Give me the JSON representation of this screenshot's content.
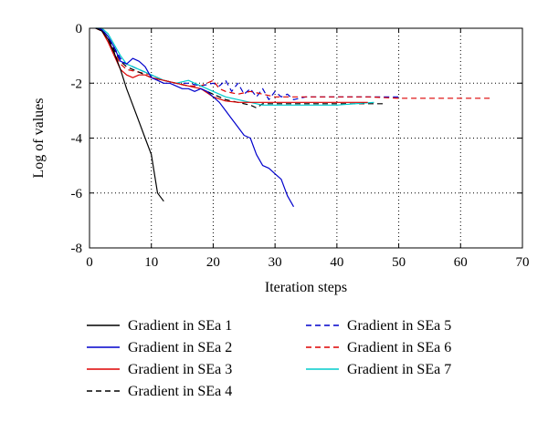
{
  "chart_data": {
    "type": "line",
    "xlabel": "Iteration steps",
    "ylabel": "Log of values",
    "xlim": [
      0,
      70
    ],
    "ylim": [
      -8,
      0
    ],
    "x_ticks": [
      0,
      10,
      20,
      30,
      40,
      50,
      60,
      70
    ],
    "y_ticks": [
      0,
      -2,
      -4,
      -6,
      -8
    ],
    "grid": "dotted",
    "legend_position": "below plot, two columns",
    "series": [
      {
        "name": "Gradient in SEa 1",
        "color": "#000000",
        "dash": "solid",
        "x": [
          1,
          2,
          3,
          4,
          5,
          6,
          7,
          8,
          9,
          10,
          11,
          12
        ],
        "y": [
          0,
          -0.1,
          -0.4,
          -0.9,
          -1.5,
          -2.2,
          -2.8,
          -3.4,
          -4.0,
          -4.6,
          -6.0,
          -6.3
        ]
      },
      {
        "name": "Gradient in SEa 2",
        "color": "#0000cc",
        "dash": "solid",
        "x": [
          1,
          2,
          3,
          4,
          5,
          6,
          7,
          8,
          9,
          10,
          11,
          12,
          13,
          14,
          15,
          16,
          17,
          18,
          19,
          20,
          21,
          22,
          23,
          24,
          25,
          26,
          27,
          28,
          29,
          30,
          31,
          32,
          33
        ],
        "y": [
          0,
          -0.05,
          -0.3,
          -0.7,
          -1.2,
          -1.3,
          -1.1,
          -1.2,
          -1.4,
          -1.8,
          -1.9,
          -2.0,
          -2.0,
          -2.1,
          -2.2,
          -2.2,
          -2.3,
          -2.2,
          -2.3,
          -2.5,
          -2.7,
          -3.0,
          -3.3,
          -3.6,
          -3.9,
          -4.0,
          -4.6,
          -5.0,
          -5.1,
          -5.3,
          -5.5,
          -6.1,
          -6.5
        ]
      },
      {
        "name": "Gradient in SEa 3",
        "color": "#dd0000",
        "dash": "solid",
        "x": [
          1,
          2,
          3,
          4,
          5,
          6,
          7,
          8,
          9,
          10,
          12,
          14,
          16,
          18,
          20,
          22,
          24,
          26,
          28,
          30,
          35,
          40,
          45
        ],
        "y": [
          0,
          -0.1,
          -0.5,
          -1.0,
          -1.5,
          -1.7,
          -1.8,
          -1.7,
          -1.7,
          -1.8,
          -1.9,
          -2.0,
          -2.1,
          -2.2,
          -2.5,
          -2.65,
          -2.7,
          -2.7,
          -2.7,
          -2.7,
          -2.7,
          -2.7,
          -2.7
        ]
      },
      {
        "name": "Gradient in SEa 4",
        "color": "#000000",
        "dash": "dashed",
        "x": [
          1,
          2,
          3,
          4,
          5,
          6,
          8,
          10,
          12,
          14,
          16,
          18,
          20,
          22,
          24,
          26,
          27,
          28,
          30,
          35,
          40,
          45,
          48
        ],
        "y": [
          0,
          -0.05,
          -0.3,
          -0.8,
          -1.2,
          -1.4,
          -1.6,
          -1.8,
          -1.9,
          -2.0,
          -2.1,
          -2.2,
          -2.4,
          -2.6,
          -2.7,
          -2.8,
          -2.9,
          -2.75,
          -2.75,
          -2.75,
          -2.75,
          -2.75,
          -2.75
        ]
      },
      {
        "name": "Gradient in SEa 5",
        "color": "#0000cc",
        "dash": "dashed",
        "x": [
          1,
          2,
          3,
          4,
          5,
          6,
          8,
          10,
          12,
          14,
          16,
          18,
          20,
          21,
          22,
          23,
          24,
          25,
          26,
          27,
          28,
          29,
          30,
          31,
          32,
          33,
          35,
          40,
          45,
          50
        ],
        "y": [
          0,
          -0.05,
          -0.3,
          -0.7,
          -1.1,
          -1.3,
          -1.5,
          -1.7,
          -1.9,
          -2.0,
          -2.0,
          -2.1,
          -2.0,
          -2.1,
          -1.9,
          -2.3,
          -2.0,
          -2.4,
          -2.2,
          -2.5,
          -2.2,
          -2.6,
          -2.3,
          -2.5,
          -2.4,
          -2.6,
          -2.5,
          -2.5,
          -2.5,
          -2.5
        ]
      },
      {
        "name": "Gradient in SEa 6",
        "color": "#dd0000",
        "dash": "dashed",
        "x": [
          1,
          2,
          3,
          4,
          5,
          6,
          8,
          10,
          12,
          14,
          16,
          18,
          20,
          21,
          22,
          24,
          26,
          28,
          30,
          35,
          40,
          45,
          50,
          55,
          60,
          65
        ],
        "y": [
          0,
          -0.1,
          -0.4,
          -0.9,
          -1.3,
          -1.5,
          -1.6,
          -1.7,
          -1.9,
          -2.0,
          -2.1,
          -2.1,
          -1.9,
          -2.2,
          -2.3,
          -2.4,
          -2.3,
          -2.4,
          -2.5,
          -2.5,
          -2.5,
          -2.5,
          -2.55,
          -2.55,
          -2.55,
          -2.55
        ]
      },
      {
        "name": "Gradient in SEa 7",
        "color": "#00cccc",
        "dash": "solid",
        "x": [
          1,
          2,
          3,
          4,
          5,
          6,
          8,
          10,
          12,
          14,
          16,
          18,
          20,
          22,
          24,
          26,
          28,
          30,
          35,
          40,
          46
        ],
        "y": [
          0,
          0,
          -0.2,
          -0.6,
          -1.0,
          -1.3,
          -1.5,
          -1.7,
          -1.9,
          -2.0,
          -1.9,
          -2.1,
          -2.3,
          -2.5,
          -2.6,
          -2.7,
          -2.8,
          -2.8,
          -2.8,
          -2.8,
          -2.7
        ]
      }
    ]
  }
}
